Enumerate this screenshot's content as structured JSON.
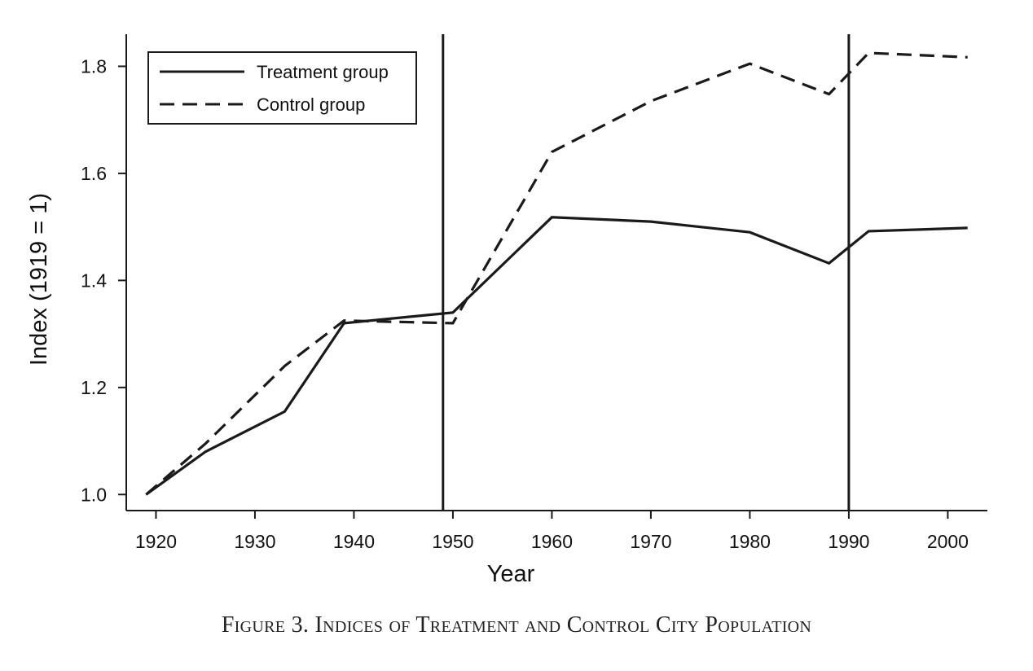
{
  "caption": "Figure 3. Indices of Treatment and Control City Population",
  "chart_data": {
    "type": "line",
    "title": "",
    "xlabel": "Year",
    "ylabel": "Index (1919 = 1)",
    "xlim": [
      1917,
      2004
    ],
    "ylim": [
      0.97,
      1.86
    ],
    "xticks": [
      1920,
      1930,
      1940,
      1950,
      1960,
      1970,
      1980,
      1990,
      2000
    ],
    "yticks": [
      "1.0",
      "1.2",
      "1.4",
      "1.6",
      "1.8"
    ],
    "grid": false,
    "legend_position": "top-left",
    "vertical_lines": [
      1949,
      1990
    ],
    "series": [
      {
        "name": "Treatment group",
        "style": "solid",
        "color": "#1a1a1a",
        "x": [
          1919,
          1925,
          1933,
          1939,
          1950,
          1960,
          1970,
          1980,
          1988,
          1992,
          2002
        ],
        "y": [
          1.0,
          1.08,
          1.155,
          1.32,
          1.34,
          1.518,
          1.51,
          1.49,
          1.432,
          1.492,
          1.498
        ]
      },
      {
        "name": "Control group",
        "style": "dashed",
        "color": "#1a1a1a",
        "x": [
          1919,
          1925,
          1933,
          1939,
          1950,
          1960,
          1970,
          1980,
          1988,
          1992,
          2002
        ],
        "y": [
          1.0,
          1.095,
          1.24,
          1.325,
          1.32,
          1.64,
          1.735,
          1.805,
          1.748,
          1.825,
          1.817
        ]
      }
    ]
  }
}
